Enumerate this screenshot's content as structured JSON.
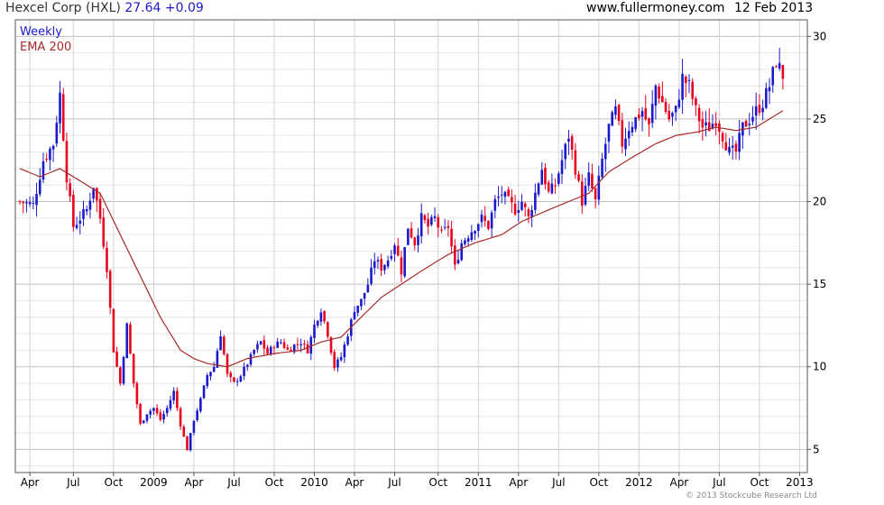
{
  "header": {
    "company": "Hexcel Corp (HXL)",
    "price": "27.64",
    "change": "+0.09",
    "site": "www.fullermoney.com",
    "date": "12 Feb 2013"
  },
  "footer": {
    "copyright": "© 2013 Stockcube Research Ltd"
  },
  "colors": {
    "up": "#1a1acc",
    "down": "#e8001c",
    "ema": "#a52a2a",
    "grid": "#d0d0d0",
    "frame": "#555555"
  },
  "chart_data": {
    "type": "candlestick",
    "legend": [
      "Weekly",
      "EMA 200"
    ],
    "ylim": [
      3.6,
      31
    ],
    "yticks": [
      5,
      10,
      15,
      20,
      25,
      30
    ],
    "xlim": [
      0,
      228
    ],
    "xticks": [
      {
        "label": "Apr",
        "x": 3
      },
      {
        "label": "Jul",
        "x": 16
      },
      {
        "label": "Oct",
        "x": 28
      },
      {
        "label": "2009",
        "x": 40
      },
      {
        "label": "Apr",
        "x": 52
      },
      {
        "label": "Jul",
        "x": 64
      },
      {
        "label": "Oct",
        "x": 76
      },
      {
        "label": "2010",
        "x": 88
      },
      {
        "label": "Apr",
        "x": 100
      },
      {
        "label": "Jul",
        "x": 112
      },
      {
        "label": "Oct",
        "x": 125
      },
      {
        "label": "2011",
        "x": 137
      },
      {
        "label": "Apr",
        "x": 149
      },
      {
        "label": "Jul",
        "x": 161
      },
      {
        "label": "Oct",
        "x": 173
      },
      {
        "label": "2012",
        "x": 185
      },
      {
        "label": "Apr",
        "x": 197
      },
      {
        "label": "Jul",
        "x": 209
      },
      {
        "label": "Oct",
        "x": 221
      },
      {
        "label": "2013",
        "x": 233
      }
    ],
    "price_keypoints": [
      [
        0,
        20.0
      ],
      [
        4,
        19.8
      ],
      [
        7,
        22.5
      ],
      [
        10,
        23.5
      ],
      [
        12,
        26.5
      ],
      [
        14,
        21.5
      ],
      [
        16,
        18.5
      ],
      [
        18,
        19.0
      ],
      [
        20,
        19.5
      ],
      [
        22,
        21.0
      ],
      [
        24,
        19.0
      ],
      [
        26,
        16.0
      ],
      [
        28,
        11.0
      ],
      [
        30,
        9.0
      ],
      [
        32,
        12.5
      ],
      [
        34,
        9.0
      ],
      [
        36,
        6.5
      ],
      [
        38,
        7.2
      ],
      [
        40,
        7.5
      ],
      [
        42,
        6.8
      ],
      [
        44,
        7.5
      ],
      [
        46,
        8.5
      ],
      [
        48,
        6.5
      ],
      [
        50,
        5.0
      ],
      [
        52,
        6.8
      ],
      [
        54,
        8.0
      ],
      [
        56,
        9.5
      ],
      [
        58,
        10.0
      ],
      [
        60,
        12.0
      ],
      [
        62,
        9.5
      ],
      [
        64,
        9.0
      ],
      [
        66,
        9.5
      ],
      [
        68,
        10.2
      ],
      [
        70,
        11.0
      ],
      [
        72,
        11.5
      ],
      [
        74,
        10.8
      ],
      [
        76,
        11.3
      ],
      [
        78,
        11.5
      ],
      [
        80,
        11.0
      ],
      [
        82,
        11.3
      ],
      [
        84,
        11.5
      ],
      [
        86,
        11.0
      ],
      [
        88,
        12.5
      ],
      [
        90,
        13.5
      ],
      [
        92,
        12.0
      ],
      [
        94,
        10.0
      ],
      [
        96,
        10.6
      ],
      [
        98,
        12.0
      ],
      [
        100,
        13.5
      ],
      [
        102,
        14.0
      ],
      [
        104,
        15.0
      ],
      [
        106,
        16.5
      ],
      [
        108,
        16.0
      ],
      [
        110,
        16.5
      ],
      [
        112,
        17.5
      ],
      [
        114,
        15.8
      ],
      [
        116,
        18.5
      ],
      [
        118,
        17.5
      ],
      [
        120,
        19.0
      ],
      [
        122,
        18.5
      ],
      [
        124,
        19.0
      ],
      [
        126,
        18.0
      ],
      [
        128,
        18.5
      ],
      [
        130,
        16.0
      ],
      [
        132,
        17.5
      ],
      [
        134,
        18.0
      ],
      [
        136,
        18.5
      ],
      [
        138,
        19.0
      ],
      [
        140,
        18.5
      ],
      [
        142,
        20.0
      ],
      [
        144,
        20.5
      ],
      [
        146,
        20.0
      ],
      [
        148,
        19.5
      ],
      [
        150,
        20.0
      ],
      [
        152,
        19.0
      ],
      [
        154,
        20.5
      ],
      [
        156,
        22.0
      ],
      [
        158,
        20.5
      ],
      [
        160,
        21.0
      ],
      [
        162,
        22.5
      ],
      [
        164,
        24.0
      ],
      [
        166,
        22.0
      ],
      [
        168,
        20.0
      ],
      [
        170,
        21.5
      ],
      [
        172,
        20.0
      ],
      [
        174,
        22.5
      ],
      [
        176,
        24.5
      ],
      [
        178,
        25.5
      ],
      [
        180,
        23.5
      ],
      [
        182,
        24.5
      ],
      [
        184,
        25.0
      ],
      [
        186,
        25.5
      ],
      [
        188,
        24.5
      ],
      [
        190,
        27.0
      ],
      [
        192,
        26.0
      ],
      [
        194,
        25.0
      ],
      [
        196,
        25.5
      ],
      [
        198,
        27.5
      ],
      [
        200,
        27.0
      ],
      [
        202,
        25.5
      ],
      [
        204,
        24.5
      ],
      [
        206,
        24.5
      ],
      [
        208,
        25.0
      ],
      [
        210,
        24.0
      ],
      [
        212,
        23.0
      ],
      [
        214,
        23.0
      ],
      [
        216,
        24.5
      ],
      [
        218,
        25.0
      ],
      [
        220,
        25.5
      ],
      [
        222,
        26.0
      ],
      [
        224,
        27.0
      ],
      [
        226,
        28.5
      ],
      [
        228,
        27.64
      ]
    ],
    "ema_keypoints": [
      [
        0,
        22.0
      ],
      [
        6,
        21.5
      ],
      [
        12,
        22.0
      ],
      [
        20,
        21.0
      ],
      [
        24,
        20.5
      ],
      [
        30,
        18.0
      ],
      [
        36,
        15.5
      ],
      [
        42,
        13.0
      ],
      [
        48,
        11.0
      ],
      [
        52,
        10.5
      ],
      [
        56,
        10.2
      ],
      [
        62,
        10.0
      ],
      [
        68,
        10.5
      ],
      [
        76,
        10.8
      ],
      [
        84,
        11.0
      ],
      [
        90,
        11.5
      ],
      [
        96,
        11.8
      ],
      [
        102,
        13.0
      ],
      [
        108,
        14.2
      ],
      [
        114,
        15.0
      ],
      [
        120,
        15.8
      ],
      [
        128,
        16.8
      ],
      [
        136,
        17.5
      ],
      [
        144,
        18.0
      ],
      [
        150,
        18.8
      ],
      [
        158,
        19.5
      ],
      [
        164,
        20.0
      ],
      [
        170,
        20.5
      ],
      [
        176,
        21.8
      ],
      [
        184,
        22.8
      ],
      [
        190,
        23.5
      ],
      [
        196,
        24.0
      ],
      [
        202,
        24.2
      ],
      [
        208,
        24.5
      ],
      [
        214,
        24.3
      ],
      [
        220,
        24.5
      ],
      [
        224,
        25.0
      ],
      [
        228,
        25.5
      ]
    ]
  }
}
